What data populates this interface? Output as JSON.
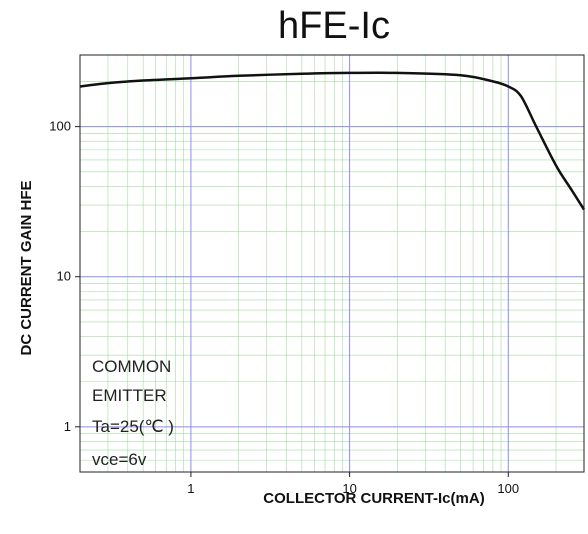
{
  "chart_data": {
    "type": "line",
    "title": "hFE-Ic",
    "xlabel": "COLLECTOR CURRENT-Ic(mA)",
    "ylabel": "DC CURRENT GAIN  HFE",
    "x_scale": "log",
    "y_scale": "log",
    "xlim": [
      0.2,
      300
    ],
    "ylim": [
      0.5,
      300
    ],
    "x_ticks": [
      1,
      10,
      100
    ],
    "x_tick_labels": [
      "1",
      "10",
      "100"
    ],
    "y_ticks": [
      1,
      10,
      100
    ],
    "y_tick_labels": [
      "1",
      "10",
      "100"
    ],
    "grid": true,
    "series": [
      {
        "x": [
          0.2,
          0.3,
          0.5,
          1,
          2,
          5,
          10,
          20,
          50,
          80,
          100,
          120,
          150,
          200,
          250,
          300
        ],
        "y": [
          185,
          195,
          203,
          210,
          218,
          225,
          228,
          228,
          220,
          200,
          185,
          160,
          100,
          55,
          38,
          28
        ]
      }
    ],
    "annotations": [
      "COMMON",
      "EMITTER",
      "Ta=25(℃ )",
      "vce=6v"
    ],
    "colors": {
      "line": "#111111",
      "major_grid": "#8c8cf0",
      "minor_grid": "#a6d9a6"
    }
  }
}
